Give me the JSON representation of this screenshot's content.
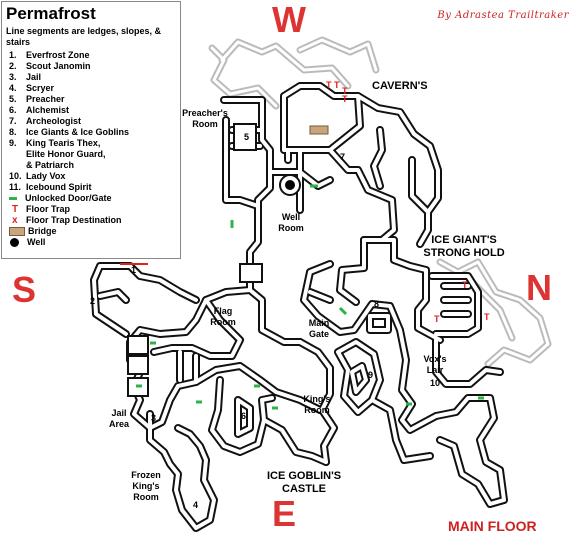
{
  "legend": {
    "title": "Permafrost",
    "note": "Line segments are ledges, slopes, & stairs",
    "items": [
      {
        "num": "1.",
        "text": "Everfrost Zone"
      },
      {
        "num": "2.",
        "text": "Scout  Janomin"
      },
      {
        "num": "3.",
        "text": "Jail"
      },
      {
        "num": "4.",
        "text": "Scryer"
      },
      {
        "num": "5.",
        "text": "Preacher"
      },
      {
        "num": "6.",
        "text": "Alchemist"
      },
      {
        "num": "7.",
        "text": "Archeologist"
      },
      {
        "num": "8.",
        "text": "Ice Giants & Ice Goblins"
      },
      {
        "num": "9.",
        "text": "King Tearis Thex,\nElite Honor Guard,\n& Patriarch"
      },
      {
        "num": "10.",
        "text": "Lady Vox"
      },
      {
        "num": "11.",
        "text": "Icebound Spirit"
      }
    ],
    "symbols": {
      "door": "Unlocked Door/Gate",
      "trap": "Floor Trap",
      "trap_dest": "Floor Trap Destination",
      "bridge": "Bridge",
      "well": "Well",
      "trap_glyph": "T",
      "dest_glyph": "x"
    }
  },
  "compass": {
    "w": "W",
    "s": "S",
    "n": "N",
    "e": "E"
  },
  "credit": "By Adrastea Trailtraker",
  "footer": "MAIN FLOOR",
  "labels": {
    "caverns": "CAVERN'S",
    "preachers_room": "Preacher's\nRoom",
    "well_room": "Well\nRoom",
    "giant_hold": "ICE GIANT'S\nSTRONG HOLD",
    "flag_room": "Flag\nRoom",
    "main_gate": "Main\nGate",
    "vox_lair": "Vox's\nLair",
    "vox_num": "10",
    "kings_room": "King's\nRoom",
    "jail_area": "Jail\nArea",
    "frozen_kings_room": "Frozen\nKing's\nRoom",
    "goblin_castle": "ICE GOBLIN'S\nCASTLE"
  },
  "markers": {
    "n1": "1",
    "n2": "2",
    "n3": "3",
    "n4": "4",
    "n5": "5",
    "n6": "6",
    "n7": "7",
    "n8": "8",
    "n9": "9"
  },
  "colors": {
    "wall": "#000000",
    "upper": "#bbbbbb",
    "door": "#2fb24a",
    "trap": "#dd2222",
    "bridge": "#c9a57d",
    "compass": "#dd3333"
  }
}
